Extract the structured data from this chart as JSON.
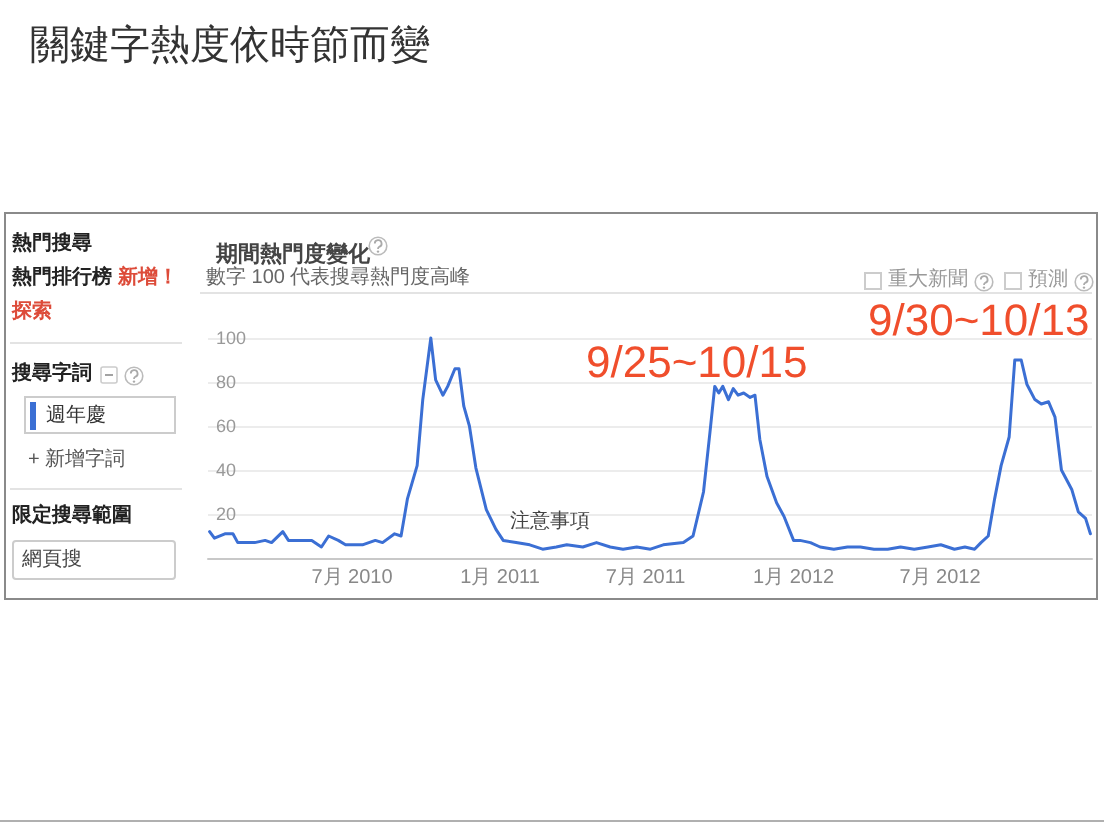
{
  "chart_data": {
    "type": "line",
    "title": "關鍵字熱度依時節而變",
    "subtitle": "期間熱門度變化",
    "annotations": [
      "數字 100 代表搜尋熱門度高峰",
      "熱門搜尋",
      "熱門排行榜",
      "新增！",
      "探索",
      "搜尋字詞",
      "+ 新增字詞",
      "限定搜尋範圍",
      "網頁搜",
      "重大新聞",
      "預測",
      "注意事項",
      "9/25~10/15",
      "9/30~10/13"
    ],
    "x": [
      "2010-01-05",
      "2010-01-11",
      "2010-01-24",
      "2010-02-03",
      "2010-02-09",
      "2010-03-02",
      "2010-03-15",
      "2010-03-23",
      "2010-04-06",
      "2010-04-13",
      "2010-04-30",
      "2010-05-12",
      "2010-05-24",
      "2010-06-02",
      "2010-06-14",
      "2010-06-23",
      "2010-07-14",
      "2010-07-30",
      "2010-08-08",
      "2010-08-23",
      "2010-08-31",
      "2010-09-08",
      "2010-09-20",
      "2010-09-27",
      "2010-10-07",
      "2010-10-13",
      "2010-10-22",
      "2010-10-28",
      "2010-11-06",
      "2010-11-11",
      "2010-11-17",
      "2010-11-24",
      "2010-12-02",
      "2010-12-15",
      "2010-12-27",
      "2011-01-05",
      "2011-01-21",
      "2011-02-07",
      "2011-02-23",
      "2011-03-12",
      "2011-03-25",
      "2011-04-14",
      "2011-05-01",
      "2011-05-18",
      "2011-06-03",
      "2011-06-20",
      "2011-07-07",
      "2011-07-23",
      "2011-08-17",
      "2011-08-29",
      "2011-09-11",
      "2011-09-19",
      "2011-09-25",
      "2011-09-30",
      "2011-10-05",
      "2011-10-12",
      "2011-10-18",
      "2011-10-24",
      "2011-10-31",
      "2011-11-08",
      "2011-11-14",
      "2011-11-20",
      "2011-11-29",
      "2011-12-11",
      "2011-12-20",
      "2012-01-01",
      "2012-01-09",
      "2012-01-22",
      "2012-02-03",
      "2012-02-20",
      "2012-03-08",
      "2012-03-24",
      "2012-04-10",
      "2012-04-27",
      "2012-05-13",
      "2012-05-30",
      "2012-06-16",
      "2012-07-02",
      "2012-07-19",
      "2012-08-01",
      "2012-08-13",
      "2012-08-21",
      "2012-08-30",
      "2012-09-07",
      "2012-09-15",
      "2012-09-25",
      "2012-10-02",
      "2012-10-10",
      "2012-10-17",
      "2012-10-27",
      "2012-11-04",
      "2012-11-13",
      "2012-11-21",
      "2012-11-29",
      "2012-12-12",
      "2012-12-20",
      "2012-12-29",
      "2013-01-04"
    ],
    "series": [
      {
        "name": "週年慶",
        "color": "#3b6fd4",
        "values": [
          12,
          9,
          11,
          11,
          7,
          7,
          8,
          7,
          12,
          8,
          8,
          8,
          5,
          10,
          8,
          6,
          6,
          8,
          7,
          11,
          10,
          27,
          42,
          72,
          100,
          81,
          74,
          78,
          86,
          86,
          69,
          60,
          41,
          22,
          13,
          8,
          7,
          6,
          4,
          5,
          6,
          5,
          7,
          5,
          4,
          5,
          4,
          6,
          7,
          10,
          30,
          57,
          78,
          75,
          78,
          72,
          77,
          74,
          75,
          73,
          74,
          54,
          37,
          25,
          19,
          8,
          8,
          7,
          5,
          4,
          5,
          5,
          4,
          4,
          5,
          4,
          5,
          6,
          4,
          5,
          4,
          7,
          10,
          27,
          42,
          55,
          90,
          90,
          79,
          72,
          70,
          71,
          64,
          40,
          31,
          21,
          18,
          11
        ]
      }
    ],
    "xlim": [
      "2010-01-03",
      "2013-01-06"
    ],
    "xticks": [
      {
        "value": "2010-07-01",
        "label": "7月 2010"
      },
      {
        "value": "2011-01-01",
        "label": "1月 2011"
      },
      {
        "value": "2011-07-01",
        "label": "7月 2011"
      },
      {
        "value": "2012-01-01",
        "label": "1月 2012"
      },
      {
        "value": "2012-07-01",
        "label": "7月 2012"
      }
    ],
    "ylim": [
      0,
      120
    ],
    "yticks": [
      20,
      40,
      60,
      80,
      100
    ],
    "grid": "y",
    "legend": "left",
    "marker": "none",
    "line_style": "solid"
  }
}
